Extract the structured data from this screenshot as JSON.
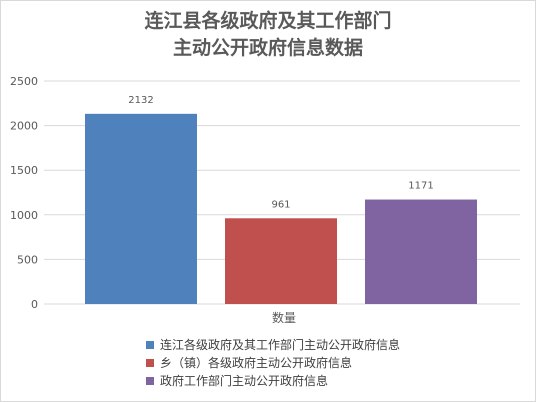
{
  "chart_data": {
    "type": "bar",
    "title_lines": [
      "连江县各级政府及其工作部门",
      "主动公开政府信息数据"
    ],
    "categories": [
      "数量"
    ],
    "series": [
      {
        "name": "连江各级政府及其工作部门主动公开政府信息",
        "values": [
          2132
        ],
        "color": "#4f81bd"
      },
      {
        "name": "乡（镇）各级政府主动公开政府信息",
        "values": [
          961
        ],
        "color": "#c0504d"
      },
      {
        "name": "政府工作部门主动公开政府信息",
        "values": [
          1171
        ],
        "color": "#8064a2"
      }
    ],
    "ylim": [
      0,
      2500
    ],
    "yticks": [
      0,
      500,
      1000,
      1500,
      2000,
      2500
    ],
    "grid": true,
    "data_labels": true,
    "legend_position": "bottom"
  }
}
